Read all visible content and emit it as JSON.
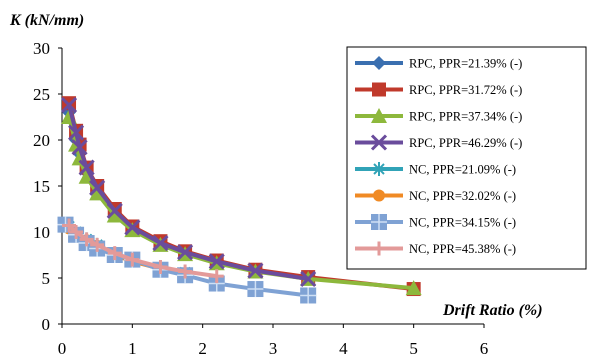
{
  "chart_data": {
    "type": "line",
    "ylabel_symbol": "K",
    "ylabel_unit": " (kN/mm)",
    "xlabel": "Drift Ratio (%)",
    "xlim": [
      0,
      6
    ],
    "ylim": [
      0,
      30
    ],
    "xticks": [
      "0",
      "1",
      "2",
      "3",
      "4",
      "5",
      "6"
    ],
    "yticks": [
      "0",
      "5",
      "10",
      "15",
      "20",
      "25",
      "30"
    ],
    "grid": false,
    "legend_position": "right",
    "series": [
      {
        "name": "RPC, PPR=21.39% (-)",
        "color": "#3a6fb0",
        "marker": "diamond",
        "x": [
          0.1,
          0.2,
          0.25,
          0.35,
          0.5,
          0.75,
          1.0,
          1.4,
          1.75,
          2.2,
          2.75,
          3.5
        ],
        "y": [
          23.0,
          20.0,
          18.5,
          16.5,
          14.5,
          12.0,
          10.5,
          8.8,
          7.8,
          6.8,
          5.8,
          4.9
        ]
      },
      {
        "name": "RPC, PPR=31.72% (-)",
        "color": "#c0392b",
        "marker": "square",
        "x": [
          0.1,
          0.2,
          0.25,
          0.35,
          0.5,
          0.75,
          1.0,
          1.4,
          1.75,
          2.2,
          2.75,
          3.5,
          5.0
        ],
        "y": [
          24.0,
          21.0,
          19.5,
          17.0,
          15.0,
          12.5,
          10.6,
          9.0,
          7.9,
          6.9,
          5.9,
          5.1,
          3.8
        ]
      },
      {
        "name": "RPC, PPR=37.34% (-)",
        "color": "#8db83c",
        "marker": "triangle",
        "x": [
          0.1,
          0.2,
          0.25,
          0.35,
          0.5,
          0.75,
          1.0,
          1.4,
          1.75,
          2.2,
          2.75,
          3.5,
          5.0
        ],
        "y": [
          22.5,
          19.5,
          18.0,
          16.0,
          14.2,
          11.8,
          10.2,
          8.6,
          7.6,
          6.6,
          5.7,
          4.9,
          3.9
        ]
      },
      {
        "name": "RPC, PPR=46.29% (-)",
        "color": "#6a4c9c",
        "marker": "x",
        "x": [
          0.1,
          0.2,
          0.25,
          0.35,
          0.5,
          0.75,
          1.0,
          1.4,
          1.75,
          2.2,
          2.75,
          3.5
        ],
        "y": [
          23.8,
          20.8,
          19.2,
          17.0,
          14.8,
          12.3,
          10.5,
          8.8,
          7.8,
          6.8,
          5.8,
          4.9
        ]
      },
      {
        "name": "NC, PPR=21.09% (-)",
        "color": "#31a3b7",
        "marker": "asterisk",
        "x": [
          0.1,
          0.2,
          0.35,
          0.5,
          0.75,
          1.0,
          1.4,
          1.75
        ],
        "y": [
          10.6,
          10.0,
          9.2,
          8.6,
          7.6,
          6.9,
          6.1,
          5.6
        ]
      },
      {
        "name": "NC, PPR=32.02% (-)",
        "color": "#f08a24",
        "marker": "circle",
        "x": [
          0.1,
          0.2,
          0.35,
          0.5,
          0.75,
          1.0,
          1.4,
          1.75
        ],
        "y": [
          10.4,
          9.9,
          9.1,
          8.5,
          7.5,
          6.8,
          6.0,
          5.5
        ]
      },
      {
        "name": "NC, PPR=34.15% (-)",
        "color": "#7fa2d4",
        "marker": "plus-square",
        "x": [
          0.05,
          0.2,
          0.35,
          0.5,
          0.75,
          1.0,
          1.4,
          1.75,
          2.2,
          2.75,
          3.5
        ],
        "y": [
          10.8,
          9.7,
          8.8,
          8.2,
          7.5,
          7.0,
          5.9,
          5.3,
          4.4,
          3.8,
          3.1
        ]
      },
      {
        "name": "NC, PPR=45.38% (-)",
        "color": "#e39a99",
        "marker": "plus",
        "x": [
          0.1,
          0.2,
          0.35,
          0.5,
          0.75,
          1.0,
          1.4,
          1.75,
          2.2
        ],
        "y": [
          10.7,
          10.0,
          9.2,
          8.6,
          7.7,
          7.0,
          6.2,
          5.7,
          5.2
        ]
      }
    ]
  }
}
